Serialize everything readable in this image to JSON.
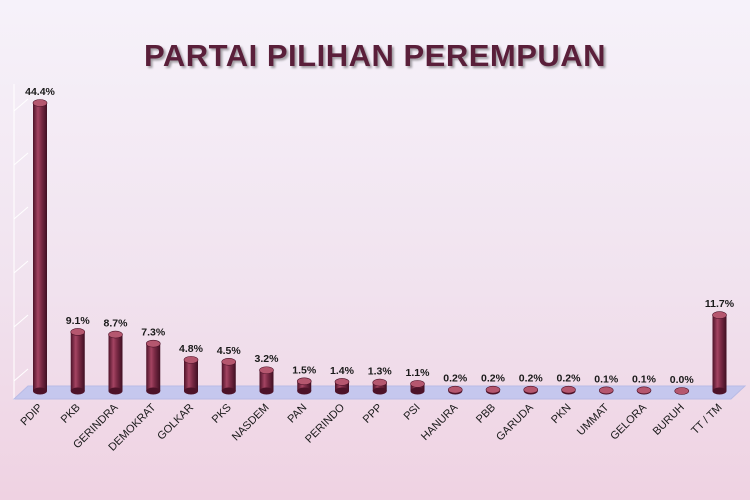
{
  "colors": {
    "bar_body": "#7a2a45",
    "bar_dark": "#4d1329",
    "bar_light": "#b5576f",
    "floor": "#c5c7ee",
    "title": "#5a1f3a"
  },
  "chart_data": {
    "type": "bar",
    "title": "PARTAI PILIHAN PEREMPUAN",
    "xlabel": "",
    "ylabel": "",
    "ylim": [
      0,
      50
    ],
    "grid": true,
    "value_suffix": "%",
    "categories": [
      "PDIP",
      "PKB",
      "GERINDRA",
      "DEMOKRAT",
      "GOLKAR",
      "PKS",
      "NASDEM",
      "PAN",
      "PERINDO",
      "PPP",
      "PSI",
      "HANURA",
      "PBB",
      "GARUDA",
      "PKN",
      "UMMAT",
      "GELORA",
      "BURUH",
      "TT / TM"
    ],
    "values": [
      44.4,
      9.1,
      8.7,
      7.3,
      4.8,
      4.5,
      3.2,
      1.5,
      1.4,
      1.3,
      1.1,
      0.2,
      0.2,
      0.2,
      0.2,
      0.1,
      0.1,
      0.0,
      11.7
    ],
    "value_labels": [
      "44.4%",
      "9.1%",
      "8.7%",
      "7.3%",
      "4.8%",
      "4.5%",
      "3.2%",
      "1.5%",
      "1.4%",
      "1.3%",
      "1.1%",
      "0.2%",
      "0.2%",
      "0.2%",
      "0.2%",
      "0.1%",
      "0.1%",
      "0.0%",
      "11.7%"
    ]
  }
}
